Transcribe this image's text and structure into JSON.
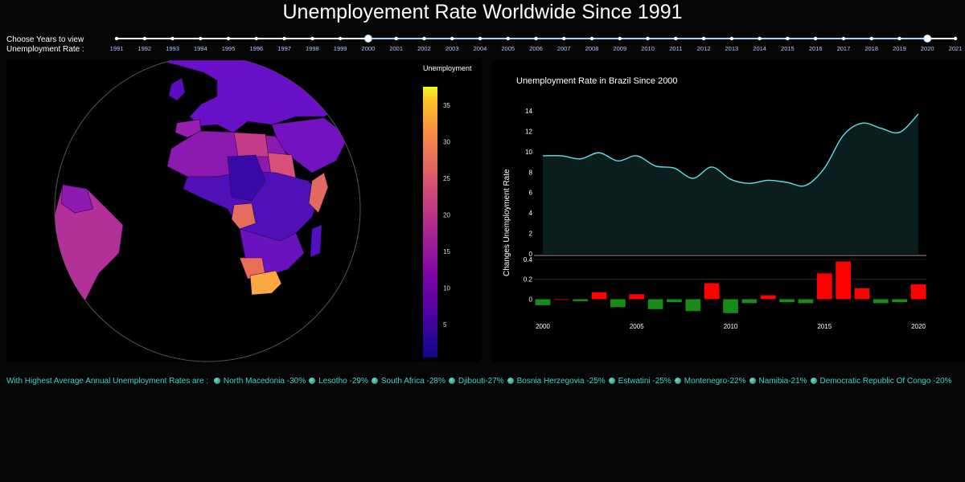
{
  "title": "Unemployement Rate Worldwide Since 1991",
  "slider": {
    "label_line1": "Choose Years to view",
    "label_line2": "Unemployment Rate :",
    "years": [
      "1991",
      "1992",
      "1993",
      "1994",
      "1995",
      "1996",
      "1997",
      "1998",
      "1999",
      "2000",
      "2001",
      "2002",
      "2003",
      "2004",
      "2005",
      "2006",
      "2007",
      "2008",
      "2009",
      "2010",
      "2011",
      "2012",
      "2013",
      "2014",
      "2015",
      "2016",
      "2017",
      "2018",
      "2019",
      "2020",
      "2021"
    ],
    "range_start": "2000",
    "range_end": "2020"
  },
  "map": {
    "colorbar_title": "Unemployment",
    "colorbar_ticks": [
      "35",
      "30",
      "25",
      "20",
      "15",
      "10",
      "5"
    ]
  },
  "chart_data": {
    "type": "line",
    "title": "Unemployment Rate in Brazil  Since 2000",
    "ylabel": "Unemployment Rate",
    "x": [
      2000,
      2001,
      2002,
      2003,
      2004,
      2005,
      2006,
      2007,
      2008,
      2009,
      2010,
      2011,
      2012,
      2013,
      2014,
      2015,
      2016,
      2017,
      2018,
      2019,
      2020
    ],
    "values": [
      9.6,
      9.6,
      9.3,
      9.9,
      9.1,
      9.6,
      8.6,
      8.4,
      7.4,
      8.5,
      7.3,
      6.9,
      7.2,
      7.0,
      6.7,
      8.4,
      11.6,
      12.8,
      12.3,
      11.9,
      13.7
    ],
    "ylim": [
      0,
      14
    ],
    "yticks": [
      "0",
      "2",
      "4",
      "6",
      "8",
      "10",
      "12",
      "14"
    ],
    "changes": {
      "ylabel": "Changes",
      "yticks": [
        "0",
        "0.2",
        "0.4"
      ],
      "ylim": [
        -0.15,
        0.4
      ],
      "values": [
        -0.06,
        0.0,
        -0.02,
        0.07,
        -0.08,
        0.05,
        -0.1,
        -0.03,
        -0.12,
        0.16,
        -0.14,
        -0.04,
        0.04,
        -0.03,
        -0.04,
        0.26,
        0.38,
        0.11,
        -0.04,
        -0.03,
        0.15
      ],
      "positive_color": "#ff0000",
      "negative_color": "#178a17"
    },
    "xticks": [
      "2000",
      "2005",
      "2010",
      "2015",
      "2020"
    ]
  },
  "ticker": {
    "prefix": "With Highest Average Annual Unemployment Rates are :",
    "items": [
      "North Macedonia -30%",
      "Lesotho -29%",
      "South Africa -28%",
      "Djibouti-27%",
      "Bosnia Herzegovia -25%",
      "Estwatini -25%",
      "Montenegro-22%",
      "Namibia-21%",
      "Democratic Republic Of Congo -20%"
    ]
  },
  "colors": {
    "accent": "#3fd3c8",
    "line": "#5de0e6",
    "area": "#0b1e1e"
  }
}
